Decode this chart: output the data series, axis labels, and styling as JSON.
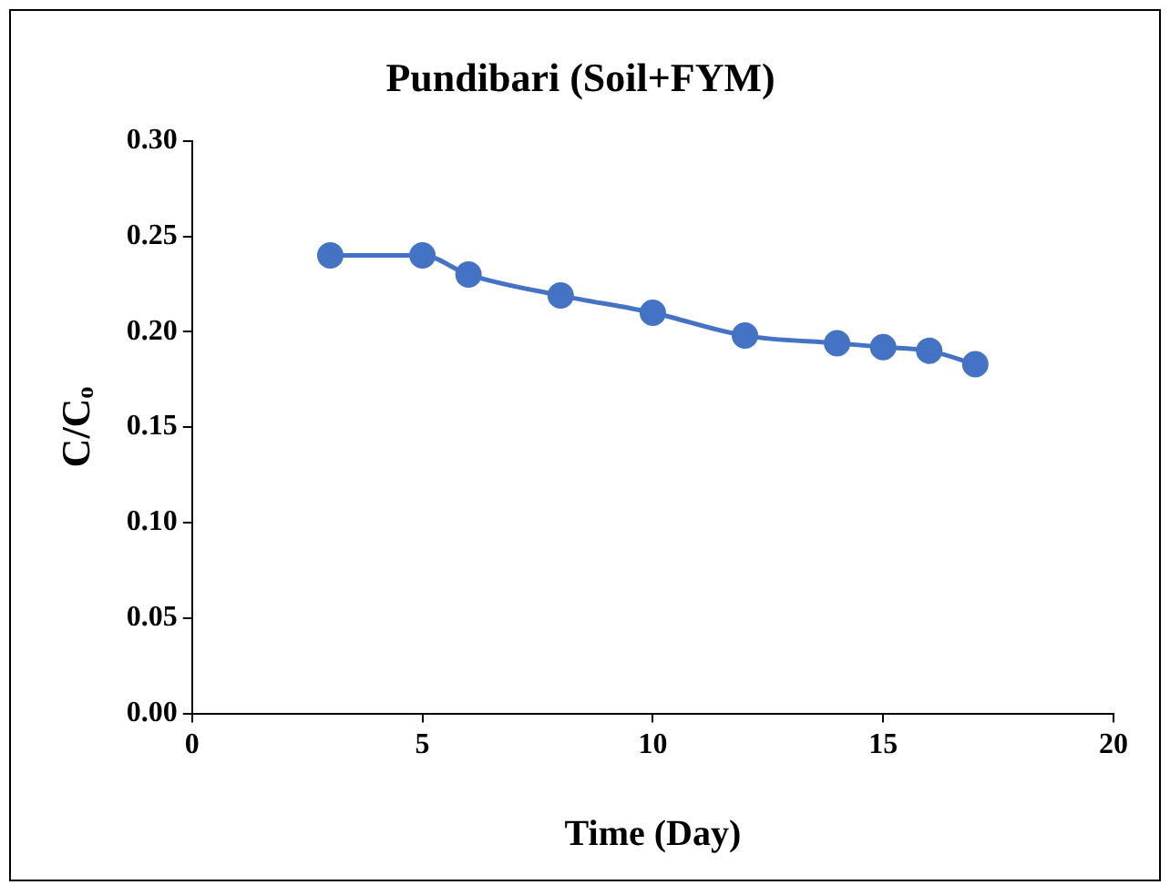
{
  "chart_data": {
    "type": "line",
    "title": "Pundibari (Soil+FYM)",
    "xlabel": "Time (Day)",
    "ylabel": "C/Cₒ",
    "x": [
      3,
      5,
      6,
      8,
      10,
      12,
      14,
      15,
      16,
      17
    ],
    "series": [
      {
        "color": "#4472c4",
        "values": [
          0.24,
          0.24,
          0.23,
          0.219,
          0.21,
          0.198,
          0.194,
          0.192,
          0.19,
          0.183
        ]
      }
    ],
    "xlim": [
      0,
      20
    ],
    "xticks": [
      0,
      5,
      10,
      15,
      20
    ],
    "ylim": [
      0,
      0.3
    ],
    "yticks": [
      {
        "value": 0,
        "label": "0.00"
      },
      {
        "value": 0.05,
        "label": "0.05"
      },
      {
        "value": 0.1,
        "label": "0.10"
      },
      {
        "value": 0.15,
        "label": "0.15"
      },
      {
        "value": 0.2,
        "label": "0.20"
      },
      {
        "value": 0.25,
        "label": "0.25"
      },
      {
        "value": 0.3,
        "label": "0.30"
      }
    ],
    "grid": false,
    "legend": false,
    "marker": "circle",
    "line_style": "solid"
  }
}
